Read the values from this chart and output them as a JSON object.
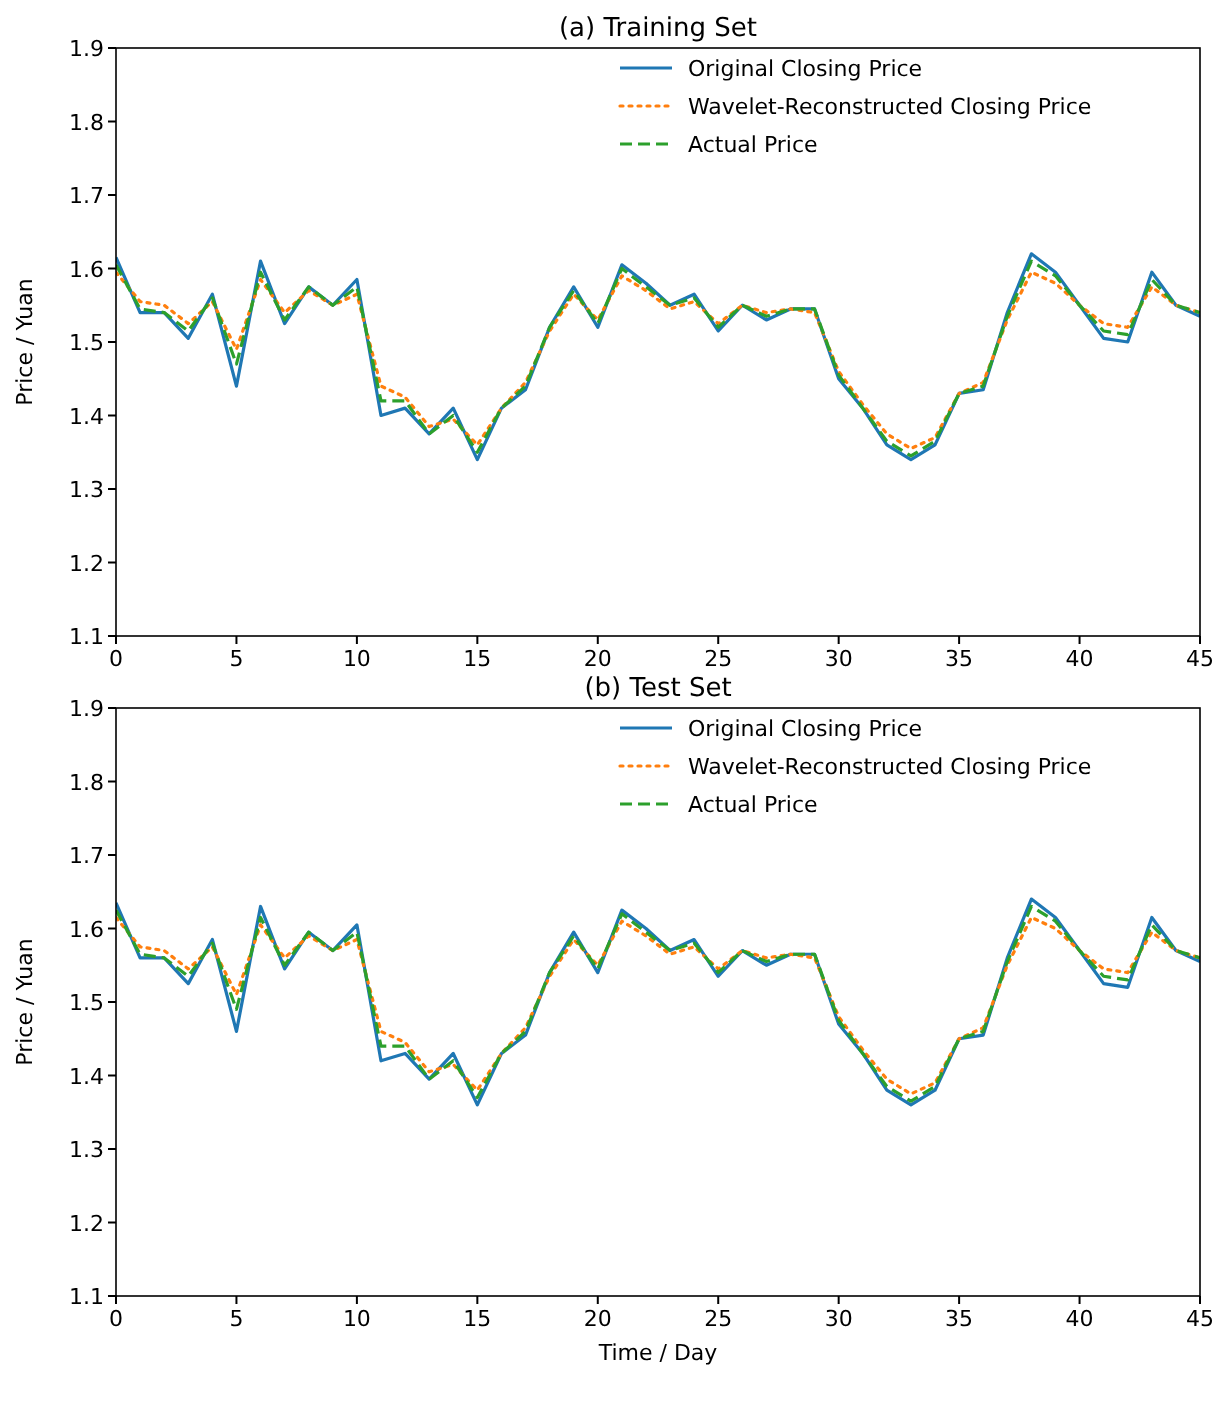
{
  "chart_data": [
    {
      "type": "line",
      "title": "(a) Training Set",
      "ylabel": "Price / Yuan",
      "x": [
        0,
        1,
        2,
        3,
        4,
        5,
        6,
        7,
        8,
        9,
        10,
        11,
        12,
        13,
        14,
        15,
        16,
        17,
        18,
        19,
        20,
        21,
        22,
        23,
        24,
        25,
        26,
        27,
        28,
        29,
        30,
        31,
        32,
        33,
        34,
        35,
        36,
        37,
        38,
        39,
        40,
        41,
        42,
        43,
        44,
        45
      ],
      "xlim": [
        0,
        45
      ],
      "xticks": [
        0,
        5,
        10,
        15,
        20,
        25,
        30,
        35,
        40,
        45
      ],
      "ylim": [
        1.1,
        1.9
      ],
      "yticks": [
        1.1,
        1.2,
        1.3,
        1.4,
        1.5,
        1.6,
        1.7,
        1.8,
        1.9
      ],
      "legend": "top right",
      "marker": "none",
      "series": [
        {
          "name": "Original Closing Price",
          "color": "#1f77b4",
          "line_style": "solid",
          "values": [
            1.615,
            1.54,
            1.54,
            1.505,
            1.565,
            1.44,
            1.61,
            1.525,
            1.575,
            1.55,
            1.585,
            1.4,
            1.41,
            1.375,
            1.41,
            1.34,
            1.41,
            1.435,
            1.52,
            1.575,
            1.52,
            1.605,
            1.58,
            1.55,
            1.565,
            1.515,
            1.55,
            1.53,
            1.545,
            1.545,
            1.45,
            1.41,
            1.36,
            1.34,
            1.36,
            1.43,
            1.435,
            1.54,
            1.62,
            1.595,
            1.55,
            1.505,
            1.5,
            1.595,
            1.55,
            1.535
          ]
        },
        {
          "name": "Wavelet-Reconstructed Closing Price",
          "color": "#ff7f0e",
          "line_style": "dotted",
          "values": [
            1.595,
            1.555,
            1.55,
            1.525,
            1.555,
            1.49,
            1.585,
            1.54,
            1.57,
            1.55,
            1.565,
            1.44,
            1.425,
            1.385,
            1.395,
            1.36,
            1.41,
            1.445,
            1.515,
            1.565,
            1.53,
            1.59,
            1.57,
            1.545,
            1.555,
            1.525,
            1.55,
            1.54,
            1.545,
            1.54,
            1.46,
            1.415,
            1.375,
            1.355,
            1.37,
            1.43,
            1.445,
            1.53,
            1.595,
            1.58,
            1.55,
            1.525,
            1.52,
            1.575,
            1.55,
            1.54
          ]
        },
        {
          "name": "Actual Price",
          "color": "#2ca02c",
          "line_style": "dashed",
          "values": [
            1.605,
            1.545,
            1.54,
            1.515,
            1.56,
            1.47,
            1.595,
            1.53,
            1.575,
            1.55,
            1.575,
            1.42,
            1.42,
            1.375,
            1.4,
            1.35,
            1.41,
            1.44,
            1.52,
            1.57,
            1.525,
            1.6,
            1.575,
            1.55,
            1.56,
            1.52,
            1.55,
            1.535,
            1.545,
            1.545,
            1.455,
            1.41,
            1.365,
            1.345,
            1.365,
            1.43,
            1.44,
            1.535,
            1.61,
            1.59,
            1.55,
            1.515,
            1.51,
            1.585,
            1.55,
            1.54
          ]
        }
      ]
    },
    {
      "type": "line",
      "title": "(b) Test Set",
      "xlabel": "Time / Day",
      "ylabel": "Price / Yuan",
      "x": [
        0,
        1,
        2,
        3,
        4,
        5,
        6,
        7,
        8,
        9,
        10,
        11,
        12,
        13,
        14,
        15,
        16,
        17,
        18,
        19,
        20,
        21,
        22,
        23,
        24,
        25,
        26,
        27,
        28,
        29,
        30,
        31,
        32,
        33,
        34,
        35,
        36,
        37,
        38,
        39,
        40,
        41,
        42,
        43,
        44,
        45
      ],
      "xlim": [
        0,
        45
      ],
      "xticks": [
        0,
        5,
        10,
        15,
        20,
        25,
        30,
        35,
        40,
        45
      ],
      "ylim": [
        1.1,
        1.9
      ],
      "yticks": [
        1.1,
        1.2,
        1.3,
        1.4,
        1.5,
        1.6,
        1.7,
        1.8,
        1.9
      ],
      "legend": "top right",
      "marker": "none",
      "series": [
        {
          "name": "Original Closing Price",
          "color": "#1f77b4",
          "line_style": "solid",
          "values": [
            1.635,
            1.56,
            1.56,
            1.525,
            1.585,
            1.46,
            1.63,
            1.545,
            1.595,
            1.57,
            1.605,
            1.42,
            1.43,
            1.395,
            1.43,
            1.36,
            1.43,
            1.455,
            1.54,
            1.595,
            1.54,
            1.625,
            1.6,
            1.57,
            1.585,
            1.535,
            1.57,
            1.55,
            1.565,
            1.565,
            1.47,
            1.43,
            1.38,
            1.36,
            1.38,
            1.45,
            1.455,
            1.56,
            1.64,
            1.615,
            1.57,
            1.525,
            1.52,
            1.615,
            1.57,
            1.555
          ]
        },
        {
          "name": "Wavelet-Reconstructed Closing Price",
          "color": "#ff7f0e",
          "line_style": "dotted",
          "values": [
            1.615,
            1.575,
            1.57,
            1.545,
            1.575,
            1.51,
            1.605,
            1.56,
            1.59,
            1.57,
            1.585,
            1.46,
            1.445,
            1.405,
            1.415,
            1.38,
            1.43,
            1.465,
            1.535,
            1.585,
            1.55,
            1.61,
            1.59,
            1.565,
            1.575,
            1.545,
            1.57,
            1.56,
            1.565,
            1.56,
            1.48,
            1.435,
            1.395,
            1.375,
            1.39,
            1.45,
            1.465,
            1.55,
            1.615,
            1.6,
            1.57,
            1.545,
            1.54,
            1.595,
            1.57,
            1.56
          ]
        },
        {
          "name": "Actual Price",
          "color": "#2ca02c",
          "line_style": "dashed",
          "values": [
            1.625,
            1.565,
            1.56,
            1.535,
            1.58,
            1.49,
            1.615,
            1.55,
            1.595,
            1.57,
            1.595,
            1.44,
            1.44,
            1.395,
            1.42,
            1.37,
            1.43,
            1.46,
            1.54,
            1.59,
            1.545,
            1.62,
            1.595,
            1.57,
            1.58,
            1.54,
            1.57,
            1.555,
            1.565,
            1.565,
            1.475,
            1.43,
            1.385,
            1.365,
            1.385,
            1.45,
            1.46,
            1.555,
            1.63,
            1.61,
            1.57,
            1.535,
            1.53,
            1.605,
            1.57,
            1.56
          ]
        }
      ]
    }
  ]
}
